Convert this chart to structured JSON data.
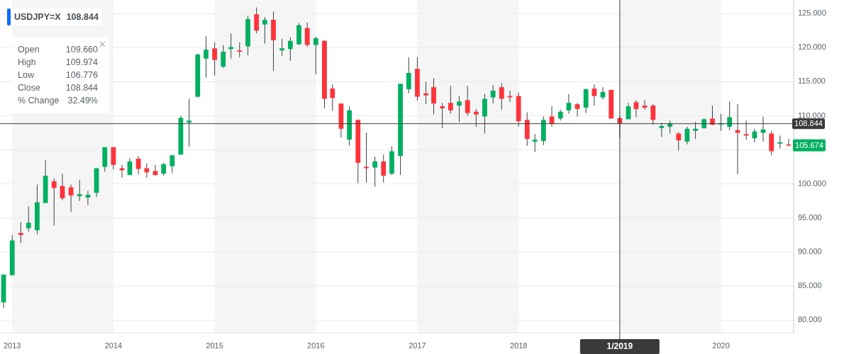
{
  "chart_data": {
    "type": "candlestick",
    "title": "USDJPY=X",
    "subtitle": "108.844",
    "x": [
      "2012-12",
      "2013-01",
      "2013-02",
      "2013-03",
      "2013-04",
      "2013-05",
      "2013-06",
      "2013-07",
      "2013-08",
      "2013-09",
      "2013-10",
      "2013-11",
      "2013-12",
      "2014-01",
      "2014-02",
      "2014-03",
      "2014-04",
      "2014-05",
      "2014-06",
      "2014-07",
      "2014-08",
      "2014-09",
      "2014-10",
      "2014-11",
      "2014-12",
      "2015-01",
      "2015-02",
      "2015-03",
      "2015-04",
      "2015-05",
      "2015-06",
      "2015-07",
      "2015-08",
      "2015-09",
      "2015-10",
      "2015-11",
      "2015-12",
      "2016-01",
      "2016-02",
      "2016-03",
      "2016-04",
      "2016-05",
      "2016-06",
      "2016-07",
      "2016-08",
      "2016-09",
      "2016-10",
      "2016-11",
      "2016-12",
      "2017-01",
      "2017-02",
      "2017-03",
      "2017-04",
      "2017-05",
      "2017-06",
      "2017-07",
      "2017-08",
      "2017-09",
      "2017-10",
      "2017-11",
      "2017-12",
      "2018-01",
      "2018-02",
      "2018-03",
      "2018-04",
      "2018-05",
      "2018-06",
      "2018-07",
      "2018-08",
      "2018-09",
      "2018-10",
      "2018-11",
      "2018-12",
      "2019-01",
      "2019-02",
      "2019-03",
      "2019-04",
      "2019-05",
      "2019-06",
      "2019-07",
      "2019-08",
      "2019-09",
      "2019-10",
      "2019-11",
      "2019-12",
      "2020-01",
      "2020-02",
      "2020-03",
      "2020-04",
      "2020-05",
      "2020-06",
      "2020-07",
      "2020-08",
      "2020-09"
    ],
    "ohlc": [
      [
        82.6,
        86.7,
        81.8,
        86.7
      ],
      [
        86.6,
        92.5,
        86.6,
        91.7
      ],
      [
        92.8,
        94.4,
        91.3,
        92.5
      ],
      [
        93.5,
        96.7,
        93.0,
        94.3
      ],
      [
        93.2,
        99.9,
        92.6,
        97.3
      ],
      [
        97.2,
        103.5,
        97.2,
        101.2
      ],
      [
        100.4,
        100.8,
        93.9,
        99.4
      ],
      [
        99.7,
        101.5,
        97.6,
        97.9
      ],
      [
        99.5,
        99.9,
        95.9,
        98.3
      ],
      [
        98.2,
        100.6,
        97.5,
        98.5
      ],
      [
        98.0,
        99.0,
        96.9,
        98.4
      ],
      [
        98.7,
        102.3,
        98.1,
        102.3
      ],
      [
        102.5,
        105.4,
        101.8,
        105.4
      ],
      [
        105.4,
        105.4,
        102.1,
        102.8
      ],
      [
        102.3,
        102.8,
        100.9,
        102.0
      ],
      [
        101.3,
        103.8,
        101.3,
        103.3
      ],
      [
        103.7,
        104.1,
        101.4,
        102.2
      ],
      [
        102.3,
        103.0,
        100.9,
        101.7
      ],
      [
        101.9,
        102.8,
        101.2,
        101.3
      ],
      [
        101.5,
        103.1,
        101.2,
        102.9
      ],
      [
        102.6,
        104.2,
        101.6,
        104.2
      ],
      [
        104.3,
        110.0,
        104.3,
        109.7
      ],
      [
        109.0,
        112.5,
        105.5,
        109.3
      ],
      [
        112.8,
        119.1,
        112.7,
        119.0
      ],
      [
        118.4,
        121.7,
        115.6,
        119.7
      ],
      [
        119.9,
        120.8,
        115.9,
        118.2
      ],
      [
        117.2,
        120.4,
        117.0,
        119.4
      ],
      [
        119.8,
        122.1,
        118.4,
        120.1
      ],
      [
        119.6,
        120.8,
        118.6,
        119.4
      ],
      [
        120.2,
        124.7,
        118.9,
        124.2
      ],
      [
        124.9,
        125.9,
        122.1,
        122.5
      ],
      [
        123.4,
        124.5,
        120.6,
        124.1
      ],
      [
        124.1,
        125.3,
        116.6,
        121.1
      ],
      [
        119.6,
        121.3,
        118.8,
        119.9
      ],
      [
        119.8,
        121.5,
        118.1,
        121.0
      ],
      [
        120.5,
        123.6,
        120.4,
        123.3
      ],
      [
        122.9,
        123.7,
        120.1,
        120.4
      ],
      [
        120.4,
        121.6,
        116.1,
        121.4
      ],
      [
        121.0,
        121.1,
        111.1,
        112.5
      ],
      [
        114.0,
        114.6,
        110.7,
        112.6
      ],
      [
        111.8,
        111.8,
        106.8,
        108.1
      ],
      [
        106.5,
        111.4,
        105.6,
        110.8
      ],
      [
        109.4,
        109.4,
        100.1,
        103.1
      ],
      [
        102.5,
        107.5,
        100.2,
        102.3
      ],
      [
        102.4,
        104.0,
        99.6,
        103.3
      ],
      [
        103.3,
        104.3,
        100.2,
        101.2
      ],
      [
        101.5,
        105.5,
        101.3,
        104.8
      ],
      [
        104.1,
        114.7,
        101.3,
        114.7
      ],
      [
        113.9,
        118.6,
        113.3,
        116.3
      ],
      [
        116.9,
        118.6,
        112.2,
        112.8
      ],
      [
        113.3,
        115.0,
        111.7,
        113.0
      ],
      [
        114.2,
        115.5,
        110.2,
        111.8
      ],
      [
        111.4,
        111.9,
        108.2,
        111.1
      ],
      [
        111.9,
        114.4,
        110.3,
        110.8
      ],
      [
        111.5,
        112.9,
        109.1,
        112.1
      ],
      [
        112.3,
        114.4,
        110.0,
        110.4
      ],
      [
        110.6,
        111.0,
        108.4,
        110.2
      ],
      [
        109.9,
        113.2,
        107.4,
        112.5
      ],
      [
        112.7,
        114.5,
        111.8,
        113.7
      ],
      [
        114.2,
        114.8,
        110.9,
        112.5
      ],
      [
        112.9,
        113.7,
        112.0,
        112.7
      ],
      [
        112.9,
        113.4,
        108.4,
        109.2
      ],
      [
        109.4,
        110.5,
        105.6,
        106.6
      ],
      [
        106.2,
        107.3,
        104.7,
        106.5
      ],
      [
        106.3,
        109.9,
        105.7,
        109.4
      ],
      [
        109.9,
        111.4,
        108.4,
        108.8
      ],
      [
        109.6,
        110.9,
        109.3,
        110.6
      ],
      [
        110.8,
        113.2,
        110.3,
        111.9
      ],
      [
        111.7,
        111.9,
        109.9,
        111.0
      ],
      [
        111.2,
        114.0,
        110.4,
        113.9
      ],
      [
        114.0,
        114.6,
        111.5,
        112.9
      ],
      [
        112.7,
        114.2,
        112.4,
        113.5
      ],
      [
        113.8,
        113.8,
        109.6,
        109.6
      ],
      [
        109.66,
        109.974,
        106.776,
        108.844
      ],
      [
        109.5,
        111.9,
        109.5,
        111.4
      ],
      [
        112.0,
        112.3,
        109.8,
        111.0
      ],
      [
        111.5,
        112.3,
        110.9,
        111.2
      ],
      [
        111.5,
        111.7,
        108.7,
        109.4
      ],
      [
        108.2,
        109.0,
        106.9,
        108.5
      ],
      [
        108.4,
        109.3,
        107.4,
        108.9
      ],
      [
        107.4,
        107.6,
        104.9,
        106.4
      ],
      [
        106.2,
        108.4,
        105.8,
        108.1
      ],
      [
        107.8,
        109.1,
        106.6,
        108.1
      ],
      [
        108.2,
        109.6,
        108.1,
        109.5
      ],
      [
        109.6,
        111.5,
        108.6,
        108.7
      ],
      [
        108.7,
        110.3,
        107.8,
        108.9
      ],
      [
        108.4,
        112.1,
        107.9,
        109.8
      ],
      [
        107.9,
        111.7,
        101.4,
        107.5
      ],
      [
        107.3,
        109.3,
        106.5,
        107.1
      ],
      [
        106.7,
        108.1,
        106.1,
        107.7
      ],
      [
        107.5,
        109.9,
        106.2,
        108.0
      ],
      [
        107.4,
        107.8,
        104.2,
        104.8
      ],
      [
        105.9,
        107.1,
        105.2,
        106.1
      ],
      [
        105.8,
        106.6,
        105.5,
        105.7
      ]
    ],
    "colors": [
      "#00b061",
      "#00b061",
      "#ff333a",
      "#00b061",
      "#00b061",
      "#00b061",
      "#ff333a",
      "#ff333a",
      "#ff333a",
      "#00b061",
      "#00b061",
      "#00b061",
      "#00b061",
      "#ff333a",
      "#ff333a",
      "#00b061",
      "#ff333a",
      "#ff333a",
      "#ff333a",
      "#00b061",
      "#00b061",
      "#00b061",
      "#00b061",
      "#00b061",
      "#00b061",
      "#ff333a",
      "#00b061",
      "#00b061",
      "#ff333a",
      "#00b061",
      "#ff333a",
      "#00b061",
      "#ff333a",
      "#00b061",
      "#00b061",
      "#00b061",
      "#ff333a",
      "#00b061",
      "#ff333a",
      "#ff333a",
      "#ff333a",
      "#00b061",
      "#ff333a",
      "#ff333a",
      "#00b061",
      "#ff333a",
      "#00b061",
      "#00b061",
      "#00b061",
      "#ff333a",
      "#ff333a",
      "#ff333a",
      "#ff333a",
      "#ff333a",
      "#00b061",
      "#ff333a",
      "#ff333a",
      "#00b061",
      "#00b061",
      "#ff333a",
      "#ff333a",
      "#ff333a",
      "#ff333a",
      "#00b061",
      "#00b061",
      "#ff333a",
      "#00b061",
      "#00b061",
      "#ff333a",
      "#00b061",
      "#ff333a",
      "#00b061",
      "#ff333a",
      "#ff333a",
      "#00b061",
      "#ff333a",
      "#ff333a",
      "#ff333a",
      "#00b061",
      "#00b061",
      "#ff333a",
      "#00b061",
      "#00b061",
      "#00b061",
      "#ff333a",
      "#00b061",
      "#00b061",
      "#ff333a",
      "#ff333a",
      "#00b061",
      "#00b061",
      "#ff333a",
      "#00b061",
      "#ff333a"
    ],
    "xlim": [
      "2012-11-18",
      "2020-09-19"
    ],
    "xticks": [
      {
        "value": "2013-01",
        "label": "2013"
      },
      {
        "value": "2014-01",
        "label": "2014"
      },
      {
        "value": "2015-01",
        "label": "2015"
      },
      {
        "value": "2016-01",
        "label": "2016"
      },
      {
        "value": "2017-01",
        "label": "2017"
      },
      {
        "value": "2018-01",
        "label": "2018"
      },
      {
        "value": "2020-01",
        "label": "2020"
      }
    ],
    "ylim": [
      78.15,
      127
    ],
    "yticks": [
      {
        "value": 80,
        "label": "80.000"
      },
      {
        "value": 85,
        "label": "85.000"
      },
      {
        "value": 90,
        "label": "90.000"
      },
      {
        "value": 95,
        "label": "95.000"
      },
      {
        "value": 100,
        "label": "100.000"
      },
      {
        "value": 105,
        "label": null
      },
      {
        "value": 110,
        "label": "110.000"
      },
      {
        "value": 115,
        "label": "115.000"
      },
      {
        "value": 120,
        "label": "120.000"
      },
      {
        "value": 125,
        "label": "125.000"
      }
    ],
    "grid": "y",
    "bands": [
      {
        "axis": "x",
        "from": "2013-01",
        "to": "2014-01",
        "color": "#f5f5f5"
      },
      {
        "axis": "x",
        "from": "2015-01",
        "to": "2016-01",
        "color": "#f5f5f5"
      },
      {
        "axis": "x",
        "from": "2017-01",
        "to": "2018-01",
        "color": "#f5f5f5"
      },
      {
        "axis": "x",
        "from": "2019-01",
        "to": "2020-01",
        "color": "#f5f5f5"
      }
    ],
    "ref_lines": [
      {
        "axis": "y",
        "value": 108.844,
        "label": "108.844",
        "color": "#3a3a3a"
      },
      {
        "axis": "x",
        "value": "2019-01",
        "label": "1/2019",
        "color": "#3a3a3a"
      }
    ],
    "annotations": [
      "Open",
      "109.660",
      "High",
      "109.974",
      "Low",
      "106.776",
      "Close",
      "108.844",
      "% Change",
      "32.49%",
      {
        "text": "105.674",
        "x": "2020-09",
        "y": 105.674
      }
    ]
  }
}
